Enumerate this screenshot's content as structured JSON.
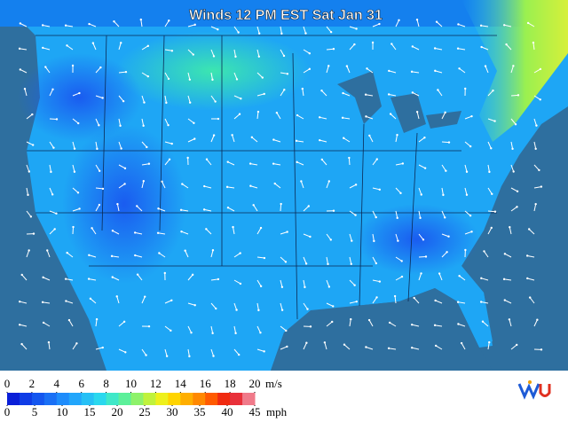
{
  "header": {
    "title": "Winds 12 PM EST Sat Jan 31"
  },
  "legend": {
    "ms_ticks": [
      0,
      2,
      4,
      6,
      8,
      10,
      12,
      14,
      16,
      18,
      20
    ],
    "ms_unit": "m/s",
    "mph_ticks": [
      0,
      5,
      10,
      15,
      20,
      25,
      30,
      35,
      40,
      45
    ],
    "mph_unit": "mph",
    "colors": [
      "#0a1fd8",
      "#0f3ce6",
      "#1456ef",
      "#1a70f5",
      "#1e8cfb",
      "#22a6fb",
      "#26c0f5",
      "#2ad8ee",
      "#3fe8c8",
      "#5cf09a",
      "#8ef26a",
      "#c0f23c",
      "#eef01c",
      "#ffd400",
      "#ffae00",
      "#ff8800",
      "#ff5a00",
      "#f02a10",
      "#e8303a",
      "#f07a8a"
    ]
  }
}
